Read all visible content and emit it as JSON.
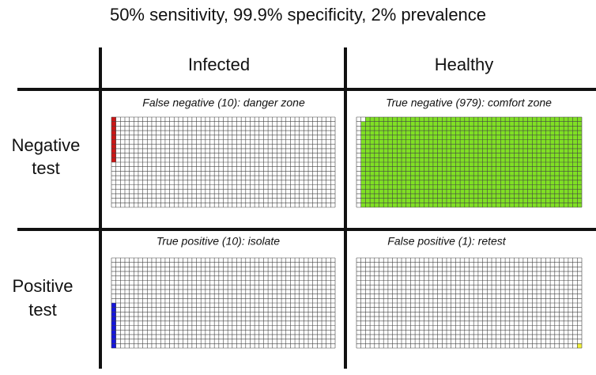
{
  "title": "50% sensitivity, 99.9% specificity, 2% prevalence",
  "columns": [
    "Infected",
    "Healthy"
  ],
  "rows": [
    [
      "Negative",
      "test"
    ],
    [
      "Positive",
      "test"
    ]
  ],
  "panels": [
    {
      "label": "False negative (10): danger zone",
      "count": 10,
      "color": "#cc1515"
    },
    {
      "label": "True negative (979): comfort zone",
      "count": 979,
      "color": "#80e024"
    },
    {
      "label": "True positive (10): isolate",
      "count": 10,
      "color": "#1515dd"
    },
    {
      "label": "False positive (1): retest",
      "count": 1,
      "color": "#f2f23a"
    }
  ]
}
